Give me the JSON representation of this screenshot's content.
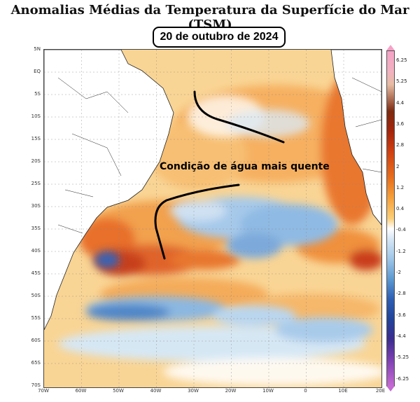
{
  "title": "Anomalias Médias da Temperatura da Superfície do Mar (TSM)",
  "date_label": "20 de outubro de 2024",
  "annotation": "Condição de água mais quente",
  "lat_labels": [
    "5N",
    "EQ",
    "5S",
    "10S",
    "15S",
    "20S",
    "25S",
    "30S",
    "35S",
    "40S",
    "45S",
    "50S",
    "55S",
    "60S",
    "65S",
    "70S"
  ],
  "lon_labels": [
    "70W",
    "60W",
    "50W",
    "40W",
    "30W",
    "20W",
    "10W",
    "0",
    "10E",
    "20E"
  ],
  "colorbar_labels": [
    "6.25",
    "5.25",
    "4.4",
    "3.6",
    "2.8",
    "2",
    "1.2",
    "0.4",
    "-0.4",
    "-1.2",
    "-2",
    "-2.8",
    "-3.6",
    "-4.4",
    "-5.25",
    "-6.25"
  ],
  "colors": {
    "warm_light": "#fbd089",
    "warm": "#f3a24a",
    "warm_strong": "#d6461a",
    "warm_extreme": "#8e1e0c",
    "neutral": "#ffffff",
    "cool_light": "#b7d6ef",
    "cool": "#6aa3d6",
    "cool_strong": "#2b5db3",
    "land": "#ffffff"
  }
}
